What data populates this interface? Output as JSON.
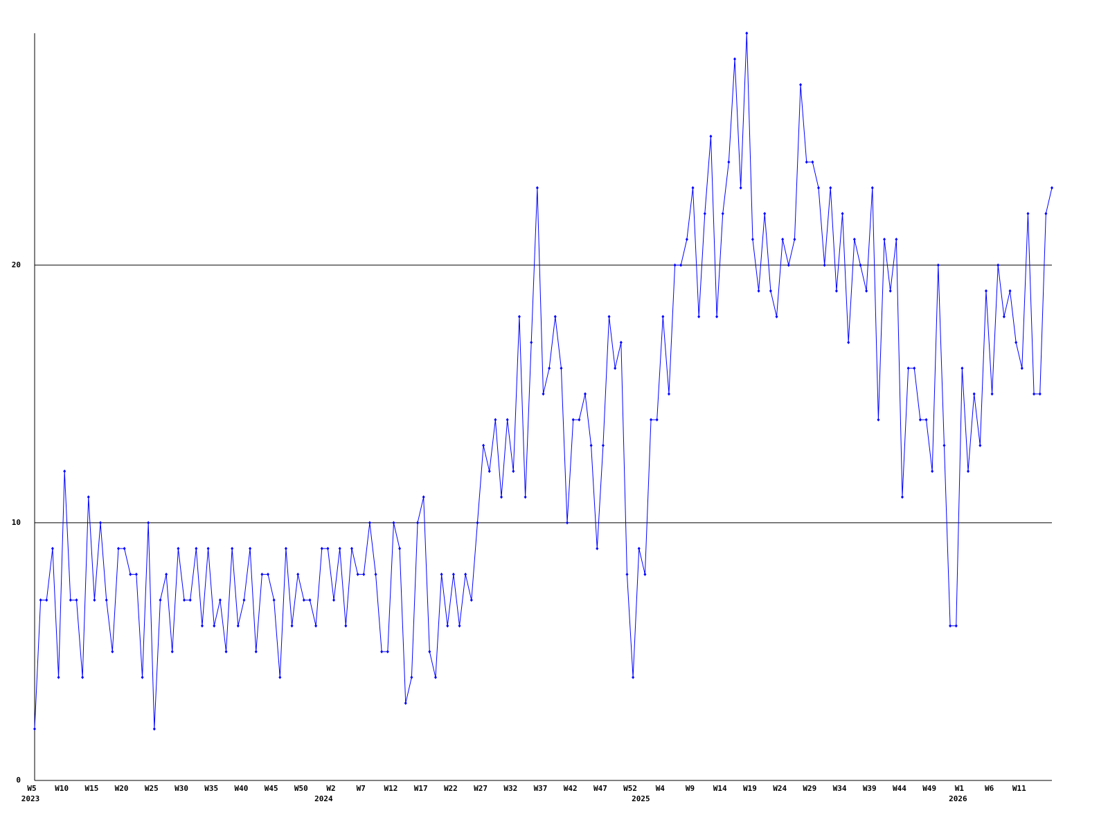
{
  "chart_data": {
    "type": "line",
    "categories": [
      "W5",
      null,
      null,
      null,
      null,
      "W10",
      null,
      null,
      null,
      null,
      "W15",
      null,
      null,
      null,
      null,
      "W20",
      null,
      null,
      null,
      null,
      "W25",
      null,
      null,
      null,
      null,
      "W30",
      null,
      null,
      null,
      null,
      "W35",
      null,
      null,
      null,
      null,
      "W40",
      null,
      null,
      null,
      null,
      "W45",
      null,
      null,
      null,
      null,
      "W50",
      null,
      null,
      null,
      null,
      "W2",
      null,
      null,
      null,
      null,
      "W7",
      null,
      null,
      null,
      null,
      "W12",
      null,
      null,
      null,
      null,
      "W17",
      null,
      null,
      null,
      null,
      "W22",
      null,
      null,
      null,
      null,
      "W27",
      null,
      null,
      null,
      null,
      "W32",
      null,
      null,
      null,
      null,
      "W37",
      null,
      null,
      null,
      null,
      "W42",
      null,
      null,
      null,
      null,
      "W47",
      null,
      null,
      null,
      null,
      "W52",
      null,
      null,
      null,
      null,
      "W4",
      null,
      null,
      null,
      null,
      "W9",
      null,
      null,
      null,
      null,
      "W14",
      null,
      null,
      null,
      null,
      "W19",
      null,
      null,
      null,
      null,
      "W24",
      null,
      null,
      null,
      null,
      "W29",
      null,
      null,
      null,
      null,
      "W34",
      null,
      null,
      null,
      null,
      "W39",
      null,
      null,
      null,
      null,
      "W44",
      null,
      null,
      null,
      null,
      "W49",
      null,
      null,
      null,
      null,
      "W1",
      null,
      null,
      null,
      null,
      "W6",
      null,
      null,
      null,
      null,
      "W11",
      null,
      null,
      null,
      null,
      null
    ],
    "x_group_labels": [
      "2023",
      null,
      null,
      null,
      null,
      null,
      null,
      null,
      null,
      null,
      null,
      null,
      null,
      null,
      null,
      null,
      null,
      null,
      null,
      null,
      null,
      null,
      null,
      null,
      null,
      null,
      null,
      null,
      null,
      null,
      null,
      null,
      null,
      null,
      null,
      null,
      null,
      null,
      null,
      null,
      null,
      null,
      null,
      null,
      null,
      null,
      null,
      null,
      null,
      "2024",
      null,
      null,
      null,
      null,
      null,
      null,
      null,
      null,
      null,
      null,
      null,
      null,
      null,
      null,
      null,
      null,
      null,
      null,
      null,
      null,
      null,
      null,
      null,
      null,
      null,
      null,
      null,
      null,
      null,
      null,
      null,
      null,
      null,
      null,
      null,
      null,
      null,
      null,
      null,
      null,
      null,
      null,
      null,
      null,
      null,
      null,
      null,
      null,
      null,
      null,
      null,
      null,
      "2025",
      null,
      null,
      null,
      null,
      null,
      null,
      null,
      null,
      null,
      null,
      null,
      null,
      null,
      null,
      null,
      null,
      null,
      null,
      null,
      null,
      null,
      null,
      null,
      null,
      null,
      null,
      null,
      null,
      null,
      null,
      null,
      null,
      null,
      null,
      null,
      null,
      null,
      null,
      null,
      null,
      null,
      null,
      null,
      null,
      null,
      null,
      null,
      null,
      null,
      null,
      null,
      null,
      "2026",
      null,
      null,
      null,
      null,
      null,
      null,
      null,
      null,
      null,
      null,
      null,
      null,
      null,
      null,
      null
    ],
    "series": [
      {
        "color": "#0000ff",
        "values": [
          2,
          7,
          7,
          9,
          4,
          12,
          7,
          7,
          4,
          11,
          7,
          10,
          7,
          5,
          9,
          9,
          8,
          8,
          4,
          10,
          2,
          7,
          8,
          5,
          9,
          7,
          7,
          9,
          6,
          9,
          6,
          7,
          5,
          9,
          6,
          7,
          9,
          5,
          8,
          8,
          7,
          4,
          9,
          6,
          8,
          7,
          7,
          6,
          9,
          9,
          7,
          9,
          6,
          9,
          8,
          8,
          10,
          8,
          5,
          5,
          10,
          9,
          3,
          4,
          10,
          11,
          5,
          4,
          8,
          6,
          8,
          6,
          8,
          7,
          10,
          13,
          12,
          14,
          11,
          14,
          12,
          18,
          11,
          17,
          23,
          15,
          16,
          18,
          16,
          10,
          14,
          14,
          15,
          13,
          9,
          13,
          18,
          16,
          17,
          8,
          4,
          9,
          8,
          14,
          14,
          18,
          15,
          20,
          20,
          21,
          23,
          18,
          22,
          25,
          18,
          22,
          24,
          28,
          23,
          29,
          21,
          19,
          22,
          19,
          18,
          21,
          20,
          21,
          27,
          24,
          24,
          23,
          20,
          23,
          19,
          22,
          17,
          21,
          20,
          19,
          23,
          14,
          21,
          19,
          21,
          11,
          16,
          16,
          14,
          14,
          12,
          20,
          13,
          6,
          6,
          16,
          12,
          15,
          13,
          19,
          15,
          20,
          18,
          19,
          17,
          16,
          22,
          15,
          15,
          22,
          23
        ]
      }
    ],
    "ylim": [
      0,
      29
    ],
    "yticks": [
      0,
      10,
      20
    ],
    "grid": true
  }
}
